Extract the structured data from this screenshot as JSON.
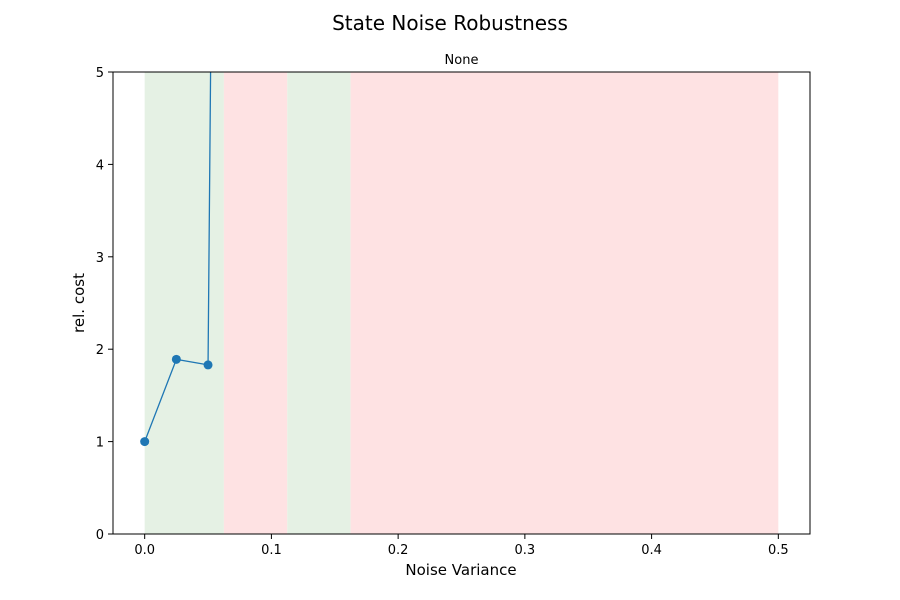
{
  "chart_data": {
    "type": "line",
    "title": "State Noise Robustness",
    "subtitle": "None",
    "xlabel": "Noise Variance",
    "ylabel": "rel. cost",
    "xlim": [
      -0.025,
      0.525
    ],
    "ylim": [
      0,
      5
    ],
    "xticks": [
      0.0,
      0.1,
      0.2,
      0.3,
      0.4,
      0.5
    ],
    "xtick_labels": [
      "0.0",
      "0.1",
      "0.2",
      "0.3",
      "0.4",
      "0.5"
    ],
    "yticks": [
      0,
      1,
      2,
      3,
      4,
      5
    ],
    "ytick_labels": [
      "0",
      "1",
      "2",
      "3",
      "4",
      "5"
    ],
    "grid": false,
    "series": [
      {
        "color": "#1f77b4",
        "x": [
          0.0,
          0.025,
          0.05
        ],
        "y": [
          1.0,
          1.89,
          1.83
        ],
        "markers": true,
        "continues_to": {
          "x": 0.052,
          "y": 5.0
        }
      }
    ],
    "bands": [
      {
        "x0": 0.0,
        "x1": 0.0625,
        "status": "good",
        "color": "#e5f1e4"
      },
      {
        "x0": 0.0625,
        "x1": 0.1125,
        "status": "bad",
        "color": "#fee2e3"
      },
      {
        "x0": 0.1125,
        "x1": 0.1625,
        "status": "good",
        "color": "#e5f1e4"
      },
      {
        "x0": 0.1625,
        "x1": 0.5,
        "status": "bad",
        "color": "#fee2e3"
      }
    ]
  }
}
